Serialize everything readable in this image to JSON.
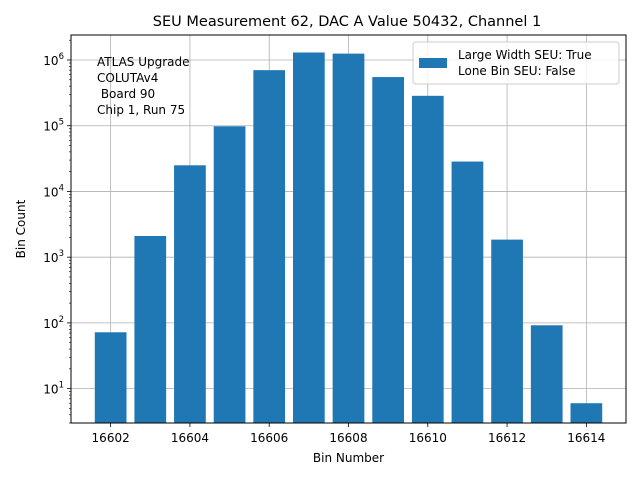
{
  "chart_data": {
    "type": "bar",
    "title": "SEU Measurement 62, DAC A Value 50432, Channel 1",
    "xlabel": "Bin Number",
    "ylabel": "Bin Count",
    "yscale": "log",
    "x": [
      16602,
      16603,
      16604,
      16605,
      16606,
      16607,
      16608,
      16609,
      16610,
      16611,
      16612,
      16613,
      16614
    ],
    "values": [
      72,
      2100,
      25000,
      98000,
      700000,
      1300000,
      1250000,
      550000,
      285000,
      28500,
      1850,
      92,
      6
    ],
    "xlim": [
      16601,
      16615
    ],
    "ylim": [
      3,
      2400000
    ],
    "xticks": [
      16602,
      16604,
      16606,
      16608,
      16610,
      16612,
      16614
    ],
    "yticks": [
      {
        "value": 10,
        "base": "10",
        "exp": "1"
      },
      {
        "value": 100,
        "base": "10",
        "exp": "2"
      },
      {
        "value": 1000,
        "base": "10",
        "exp": "3"
      },
      {
        "value": 10000,
        "base": "10",
        "exp": "4"
      },
      {
        "value": 100000,
        "base": "10",
        "exp": "5"
      },
      {
        "value": 1000000,
        "base": "10",
        "exp": "6"
      }
    ],
    "grid": true,
    "bar_color": "#1f77b4",
    "legend": {
      "placement": "upper right",
      "entries": [
        "Large Width SEU: True",
        "Lone Bin SEU: False"
      ]
    },
    "annotation_lines": [
      "ATLAS Upgrade",
      "COLUTAv4",
      " Board 90",
      "Chip 1, Run 75"
    ]
  }
}
